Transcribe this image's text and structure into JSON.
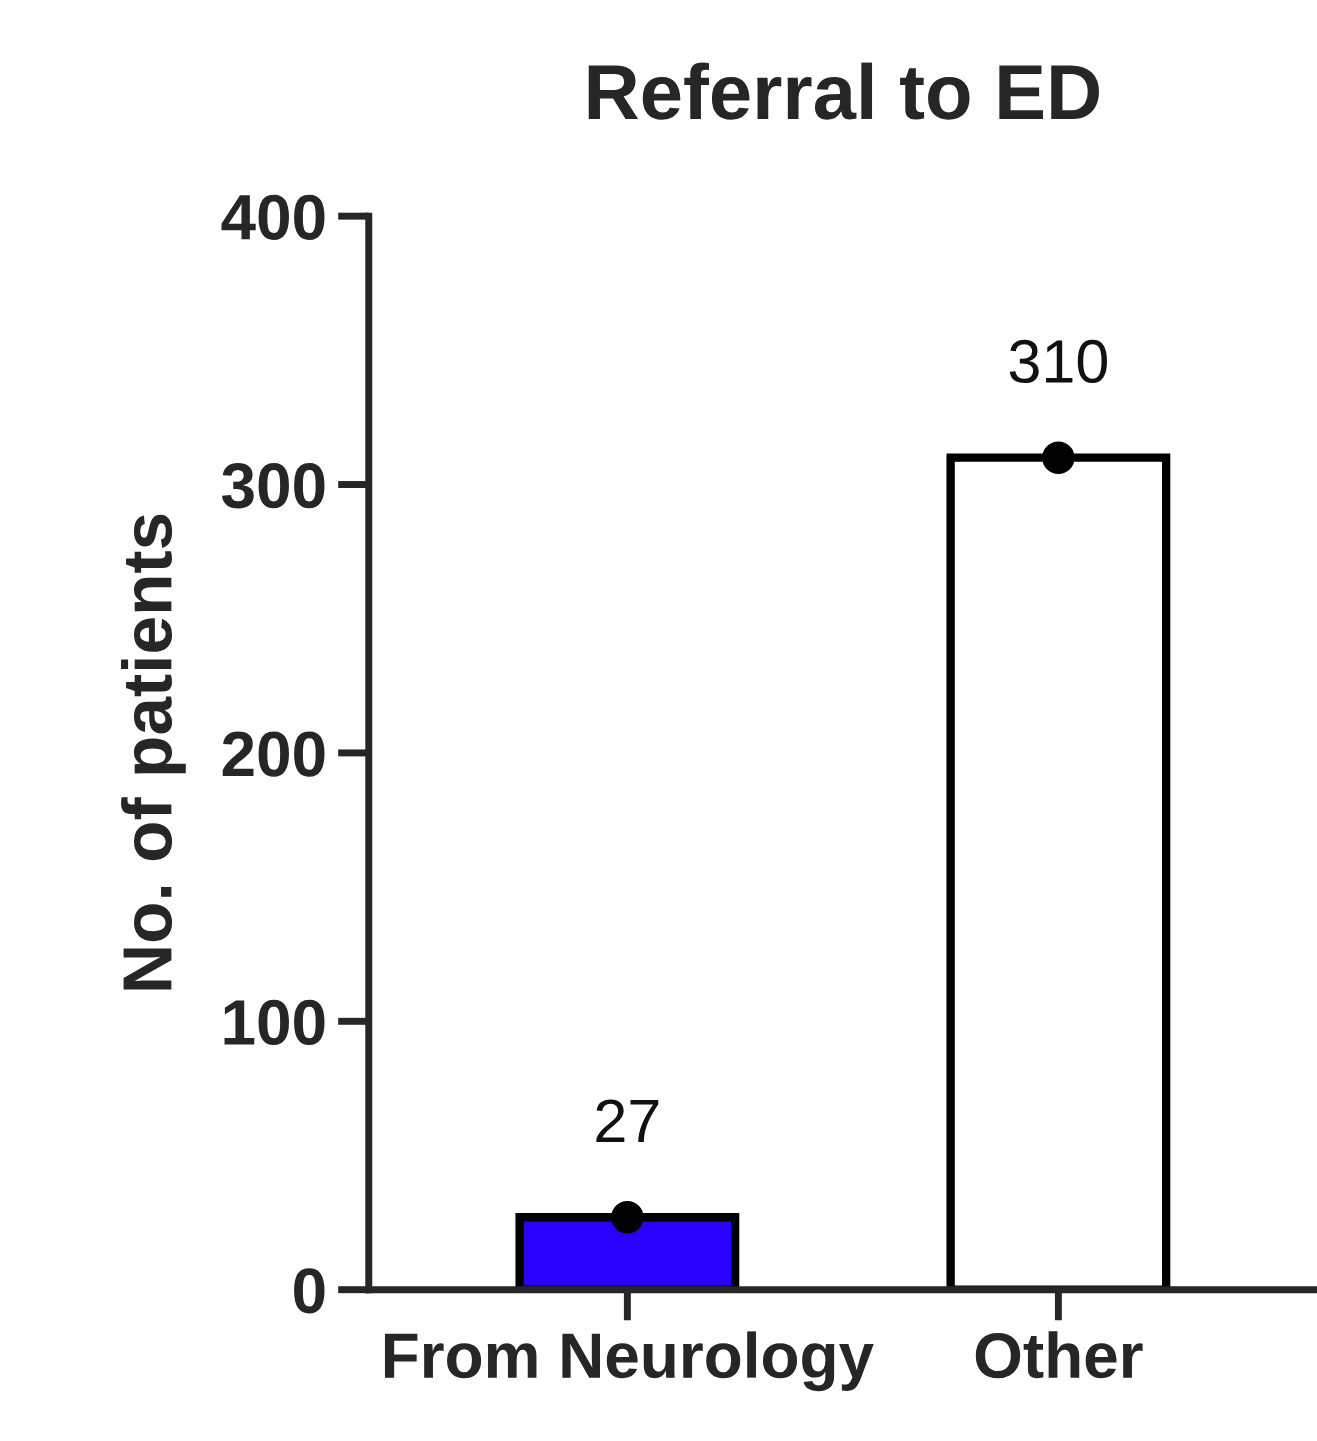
{
  "chart_data": {
    "type": "bar",
    "title": "Referral to ED",
    "ylabel": "No. of patients",
    "categories": [
      "From Neurology",
      "Other"
    ],
    "series": [
      {
        "colors": [
          "#2a00ff",
          "#ffffff"
        ],
        "values": [
          27,
          310
        ],
        "data_labels": true
      },
      {
        "type": "scatter",
        "x": [
          "From Neurology",
          "Other"
        ],
        "values": [
          27,
          310
        ],
        "color": "#000000",
        "marker": "circle"
      }
    ],
    "ylim": [
      0,
      400
    ],
    "yticks": [
      0,
      100,
      200,
      300,
      400
    ],
    "grid": false,
    "legend": false
  }
}
